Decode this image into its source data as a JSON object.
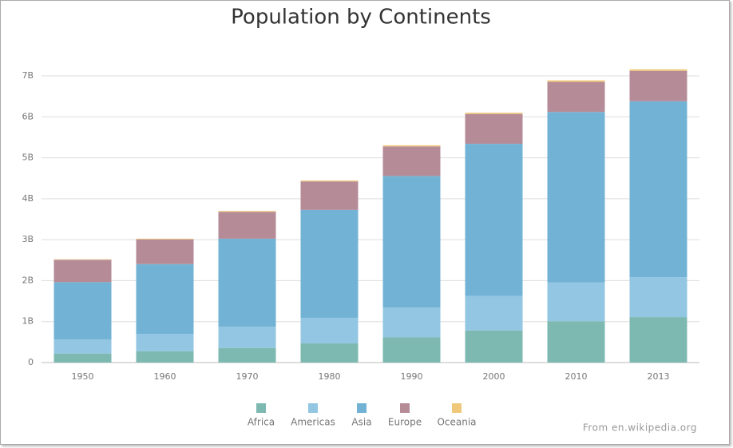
{
  "chart_data": {
    "type": "stacked_bar",
    "title": "Population by Continents",
    "source": "From en.wikipedia.org",
    "categories": [
      "1950",
      "1960",
      "1970",
      "1980",
      "1990",
      "2000",
      "2010",
      "2013"
    ],
    "series": [
      {
        "name": "Africa",
        "color": "#7db9b0",
        "values": [
          221000000,
          277000000,
          357000000,
          467000000,
          615000000,
          784000000,
          1010000000,
          1110000000
        ]
      },
      {
        "name": "Americas",
        "color": "#92c6e2",
        "values": [
          339000000,
          425000000,
          519000000,
          619000000,
          727000000,
          840000000,
          943000000,
          972000000
        ]
      },
      {
        "name": "Asia",
        "color": "#72b3d5",
        "values": [
          1402000000,
          1702000000,
          2148000000,
          2641000000,
          3213000000,
          3717000000,
          4165000000,
          4298000000
        ]
      },
      {
        "name": "Europe",
        "color": "#b68b98",
        "values": [
          547000000,
          605000000,
          657000000,
          695000000,
          722000000,
          729000000,
          735000000,
          742000000
        ]
      },
      {
        "name": "Oceania",
        "color": "#f0c87a",
        "values": [
          12800000,
          15900000,
          19800000,
          23700000,
          27300000,
          31100000,
          37200000,
          38300000
        ]
      }
    ],
    "ylim": [
      0,
      7000000000
    ],
    "yticks": [
      0,
      {
        "value": 1000000000,
        "label": "1B"
      },
      {
        "value": 2000000000,
        "label": "2B"
      },
      {
        "value": 3000000000,
        "label": "3B"
      },
      {
        "value": 4000000000,
        "label": "4B"
      },
      {
        "value": 5000000000,
        "label": "5B"
      },
      {
        "value": 6000000000,
        "label": "6B"
      },
      {
        "value": 7000000000,
        "label": "7B"
      }
    ],
    "grid": true
  }
}
